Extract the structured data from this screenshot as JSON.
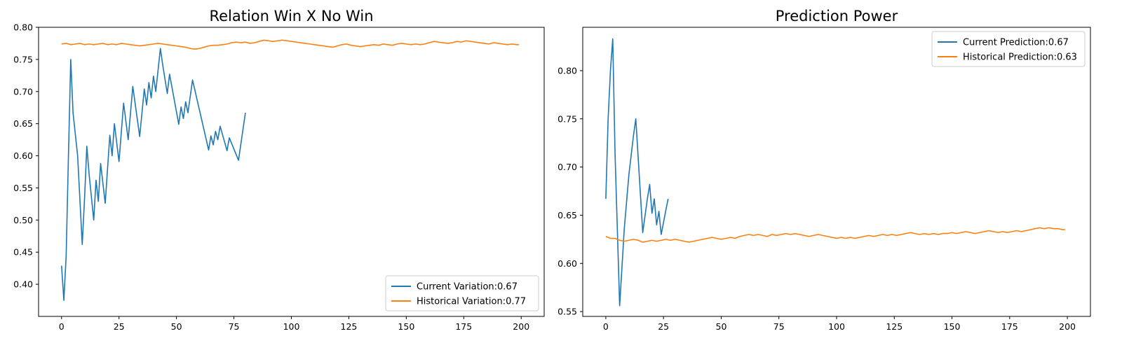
{
  "chart_data": [
    {
      "type": "line",
      "title": "Relation Win X No Win",
      "xlabel": "",
      "ylabel": "",
      "xlim": [
        -10,
        210
      ],
      "ylim": [
        0.35,
        0.8
      ],
      "xticks": [
        0,
        25,
        50,
        75,
        100,
        125,
        150,
        175,
        200
      ],
      "yticks": [
        0.4,
        0.45,
        0.5,
        0.55,
        0.6,
        0.65,
        0.7,
        0.75,
        0.8
      ],
      "legend_position": "lower-right",
      "grid": false,
      "series": [
        {
          "name": "Current Variation:0.67",
          "color": "#1f77b4",
          "points": [
            [
              0,
              0.429
            ],
            [
              1,
              0.375
            ],
            [
              2,
              0.444
            ],
            [
              3,
              0.6
            ],
            [
              4,
              0.75
            ],
            [
              5,
              0.667
            ],
            [
              7,
              0.6
            ],
            [
              9,
              0.462
            ],
            [
              10,
              0.533
            ],
            [
              11,
              0.615
            ],
            [
              12,
              0.571
            ],
            [
              14,
              0.5
            ],
            [
              15,
              0.562
            ],
            [
              16,
              0.529
            ],
            [
              17,
              0.588
            ],
            [
              19,
              0.526
            ],
            [
              21,
              0.632
            ],
            [
              22,
              0.6
            ],
            [
              23,
              0.65
            ],
            [
              25,
              0.591
            ],
            [
              27,
              0.682
            ],
            [
              29,
              0.625
            ],
            [
              31,
              0.708
            ],
            [
              34,
              0.63
            ],
            [
              36,
              0.704
            ],
            [
              37,
              0.679
            ],
            [
              38,
              0.714
            ],
            [
              39,
              0.69
            ],
            [
              40,
              0.724
            ],
            [
              41,
              0.7
            ],
            [
              43,
              0.767
            ],
            [
              44,
              0.742
            ],
            [
              46,
              0.697
            ],
            [
              47,
              0.727
            ],
            [
              51,
              0.649
            ],
            [
              52,
              0.676
            ],
            [
              53,
              0.658
            ],
            [
              54,
              0.684
            ],
            [
              55,
              0.667
            ],
            [
              57,
              0.718
            ],
            [
              64,
              0.609
            ],
            [
              65,
              0.631
            ],
            [
              66,
              0.617
            ],
            [
              67,
              0.638
            ],
            [
              68,
              0.625
            ],
            [
              69,
              0.646
            ],
            [
              72,
              0.608
            ],
            [
              73,
              0.628
            ],
            [
              77,
              0.593
            ],
            [
              80,
              0.667
            ]
          ]
        },
        {
          "name": "Historical Variation:0.77",
          "color": "#ff7f0e",
          "points": [
            [
              0,
              0.774
            ],
            [
              2,
              0.775
            ],
            [
              4,
              0.773
            ],
            [
              6,
              0.774
            ],
            [
              8,
              0.775
            ],
            [
              10,
              0.773
            ],
            [
              12,
              0.774
            ],
            [
              14,
              0.773
            ],
            [
              16,
              0.774
            ],
            [
              18,
              0.775
            ],
            [
              20,
              0.773
            ],
            [
              22,
              0.774
            ],
            [
              24,
              0.773
            ],
            [
              26,
              0.775
            ],
            [
              28,
              0.774
            ],
            [
              30,
              0.773
            ],
            [
              32,
              0.772
            ],
            [
              34,
              0.771
            ],
            [
              36,
              0.772
            ],
            [
              38,
              0.773
            ],
            [
              40,
              0.774
            ],
            [
              42,
              0.775
            ],
            [
              44,
              0.774
            ],
            [
              46,
              0.773
            ],
            [
              48,
              0.772
            ],
            [
              50,
              0.771
            ],
            [
              52,
              0.77
            ],
            [
              54,
              0.769
            ],
            [
              56,
              0.767
            ],
            [
              58,
              0.766
            ],
            [
              60,
              0.767
            ],
            [
              62,
              0.769
            ],
            [
              64,
              0.771
            ],
            [
              66,
              0.772
            ],
            [
              68,
              0.772
            ],
            [
              70,
              0.773
            ],
            [
              72,
              0.774
            ],
            [
              74,
              0.776
            ],
            [
              76,
              0.777
            ],
            [
              78,
              0.776
            ],
            [
              80,
              0.777
            ],
            [
              82,
              0.775
            ],
            [
              84,
              0.776
            ],
            [
              86,
              0.778
            ],
            [
              88,
              0.78
            ],
            [
              90,
              0.779
            ],
            [
              92,
              0.778
            ],
            [
              94,
              0.779
            ],
            [
              96,
              0.78
            ],
            [
              98,
              0.779
            ],
            [
              100,
              0.778
            ],
            [
              102,
              0.777
            ],
            [
              104,
              0.776
            ],
            [
              106,
              0.775
            ],
            [
              108,
              0.774
            ],
            [
              110,
              0.773
            ],
            [
              112,
              0.772
            ],
            [
              114,
              0.771
            ],
            [
              116,
              0.77
            ],
            [
              118,
              0.769
            ],
            [
              120,
              0.771
            ],
            [
              122,
              0.773
            ],
            [
              124,
              0.774
            ],
            [
              126,
              0.772
            ],
            [
              128,
              0.771
            ],
            [
              130,
              0.77
            ],
            [
              132,
              0.771
            ],
            [
              134,
              0.772
            ],
            [
              136,
              0.773
            ],
            [
              138,
              0.772
            ],
            [
              140,
              0.774
            ],
            [
              142,
              0.773
            ],
            [
              144,
              0.772
            ],
            [
              146,
              0.774
            ],
            [
              148,
              0.775
            ],
            [
              150,
              0.774
            ],
            [
              152,
              0.773
            ],
            [
              154,
              0.774
            ],
            [
              156,
              0.773
            ],
            [
              158,
              0.774
            ],
            [
              160,
              0.776
            ],
            [
              162,
              0.778
            ],
            [
              164,
              0.777
            ],
            [
              166,
              0.776
            ],
            [
              168,
              0.775
            ],
            [
              170,
              0.776
            ],
            [
              172,
              0.778
            ],
            [
              174,
              0.777
            ],
            [
              176,
              0.779
            ],
            [
              178,
              0.778
            ],
            [
              180,
              0.777
            ],
            [
              182,
              0.776
            ],
            [
              184,
              0.775
            ],
            [
              186,
              0.774
            ],
            [
              188,
              0.776
            ],
            [
              190,
              0.775
            ],
            [
              192,
              0.774
            ],
            [
              194,
              0.773
            ],
            [
              196,
              0.774
            ],
            [
              198,
              0.773
            ],
            [
              199,
              0.773
            ]
          ]
        }
      ]
    },
    {
      "type": "line",
      "title": "Prediction Power",
      "xlabel": "",
      "ylabel": "",
      "xlim": [
        -10,
        210
      ],
      "ylim": [
        0.545,
        0.845
      ],
      "xticks": [
        0,
        25,
        50,
        75,
        100,
        125,
        150,
        175,
        200
      ],
      "yticks": [
        0.55,
        0.6,
        0.65,
        0.7,
        0.75,
        0.8
      ],
      "legend_position": "upper-right",
      "grid": false,
      "series": [
        {
          "name": "Current Prediction:0.67",
          "color": "#1f77b4",
          "points": [
            [
              0,
              0.667
            ],
            [
              1,
              0.75
            ],
            [
              2,
              0.8
            ],
            [
              3,
              0.833
            ],
            [
              4,
              0.714
            ],
            [
              6,
              0.556
            ],
            [
              8,
              0.636
            ],
            [
              10,
              0.692
            ],
            [
              12,
              0.733
            ],
            [
              13,
              0.75
            ],
            [
              16,
              0.632
            ],
            [
              18,
              0.667
            ],
            [
              19,
              0.682
            ],
            [
              20,
              0.652
            ],
            [
              21,
              0.667
            ],
            [
              22,
              0.64
            ],
            [
              23,
              0.654
            ],
            [
              24,
              0.63
            ],
            [
              26,
              0.655
            ],
            [
              27,
              0.667
            ]
          ]
        },
        {
          "name": "Historical Prediction:0.63",
          "color": "#ff7f0e",
          "points": [
            [
              0,
              0.628
            ],
            [
              2,
              0.626
            ],
            [
              4,
              0.626
            ],
            [
              6,
              0.624
            ],
            [
              8,
              0.623
            ],
            [
              10,
              0.624
            ],
            [
              12,
              0.625
            ],
            [
              14,
              0.624
            ],
            [
              16,
              0.622
            ],
            [
              18,
              0.623
            ],
            [
              20,
              0.624
            ],
            [
              22,
              0.623
            ],
            [
              24,
              0.624
            ],
            [
              26,
              0.625
            ],
            [
              28,
              0.624
            ],
            [
              30,
              0.625
            ],
            [
              32,
              0.624
            ],
            [
              34,
              0.623
            ],
            [
              36,
              0.622
            ],
            [
              38,
              0.623
            ],
            [
              40,
              0.624
            ],
            [
              42,
              0.625
            ],
            [
              44,
              0.626
            ],
            [
              46,
              0.627
            ],
            [
              48,
              0.626
            ],
            [
              50,
              0.625
            ],
            [
              52,
              0.626
            ],
            [
              54,
              0.627
            ],
            [
              56,
              0.626
            ],
            [
              58,
              0.628
            ],
            [
              60,
              0.629
            ],
            [
              62,
              0.63
            ],
            [
              64,
              0.629
            ],
            [
              66,
              0.63
            ],
            [
              68,
              0.629
            ],
            [
              70,
              0.628
            ],
            [
              72,
              0.63
            ],
            [
              74,
              0.629
            ],
            [
              76,
              0.63
            ],
            [
              78,
              0.631
            ],
            [
              80,
              0.63
            ],
            [
              82,
              0.631
            ],
            [
              84,
              0.63
            ],
            [
              86,
              0.629
            ],
            [
              88,
              0.628
            ],
            [
              90,
              0.629
            ],
            [
              92,
              0.63
            ],
            [
              94,
              0.629
            ],
            [
              96,
              0.628
            ],
            [
              98,
              0.627
            ],
            [
              100,
              0.626
            ],
            [
              102,
              0.627
            ],
            [
              104,
              0.626
            ],
            [
              106,
              0.627
            ],
            [
              108,
              0.626
            ],
            [
              110,
              0.627
            ],
            [
              112,
              0.628
            ],
            [
              114,
              0.629
            ],
            [
              116,
              0.628
            ],
            [
              118,
              0.629
            ],
            [
              120,
              0.63
            ],
            [
              122,
              0.629
            ],
            [
              124,
              0.63
            ],
            [
              126,
              0.629
            ],
            [
              128,
              0.63
            ],
            [
              130,
              0.631
            ],
            [
              132,
              0.632
            ],
            [
              134,
              0.631
            ],
            [
              136,
              0.63
            ],
            [
              138,
              0.631
            ],
            [
              140,
              0.63
            ],
            [
              142,
              0.631
            ],
            [
              144,
              0.63
            ],
            [
              146,
              0.631
            ],
            [
              148,
              0.631
            ],
            [
              150,
              0.632
            ],
            [
              152,
              0.631
            ],
            [
              154,
              0.632
            ],
            [
              156,
              0.633
            ],
            [
              158,
              0.632
            ],
            [
              160,
              0.631
            ],
            [
              162,
              0.632
            ],
            [
              164,
              0.633
            ],
            [
              166,
              0.634
            ],
            [
              168,
              0.633
            ],
            [
              170,
              0.632
            ],
            [
              172,
              0.633
            ],
            [
              174,
              0.632
            ],
            [
              176,
              0.633
            ],
            [
              178,
              0.634
            ],
            [
              180,
              0.633
            ],
            [
              182,
              0.634
            ],
            [
              184,
              0.635
            ],
            [
              186,
              0.636
            ],
            [
              188,
              0.637
            ],
            [
              190,
              0.636
            ],
            [
              192,
              0.637
            ],
            [
              194,
              0.636
            ],
            [
              196,
              0.636
            ],
            [
              198,
              0.635
            ],
            [
              199,
              0.635
            ]
          ]
        }
      ]
    }
  ]
}
